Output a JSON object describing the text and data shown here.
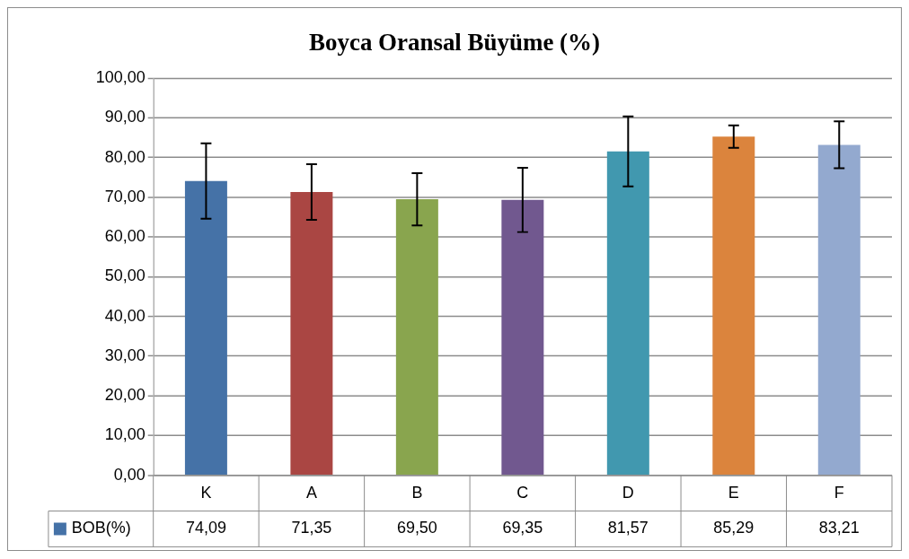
{
  "chart_data": {
    "type": "bar",
    "title": "Boyca Oransal Büyüme (%)",
    "categories": [
      "K",
      "A",
      "B",
      "C",
      "D",
      "E",
      "F"
    ],
    "series": [
      {
        "name": "BOB(%)",
        "color": "#4572a7",
        "colors": [
          "#4572a7",
          "#aa4643",
          "#89a54e",
          "#71588f",
          "#4198af",
          "#db843d",
          "#93a9cf"
        ],
        "values": [
          74.09,
          71.35,
          69.5,
          69.35,
          81.57,
          85.29,
          83.21
        ],
        "errors": [
          9.5,
          7.0,
          6.6,
          8.1,
          8.8,
          2.8,
          5.9
        ],
        "value_labels": [
          "74,09",
          "71,35",
          "69,50",
          "69,35",
          "81,57",
          "85,29",
          "83,21"
        ]
      }
    ],
    "ylim": [
      0,
      100
    ],
    "yticks": [
      {
        "value": 0,
        "label": "0,00"
      },
      {
        "value": 10,
        "label": "10,00"
      },
      {
        "value": 20,
        "label": "20,00"
      },
      {
        "value": 30,
        "label": "30,00"
      },
      {
        "value": 40,
        "label": "40,00"
      },
      {
        "value": 50,
        "label": "50,00"
      },
      {
        "value": 60,
        "label": "60,00"
      },
      {
        "value": 70,
        "label": "70,00"
      },
      {
        "value": 80,
        "label": "80,00"
      },
      {
        "value": 90,
        "label": "90,00"
      },
      {
        "value": 100,
        "label": "100,00"
      }
    ],
    "grid": "y",
    "legend": "bottom"
  }
}
